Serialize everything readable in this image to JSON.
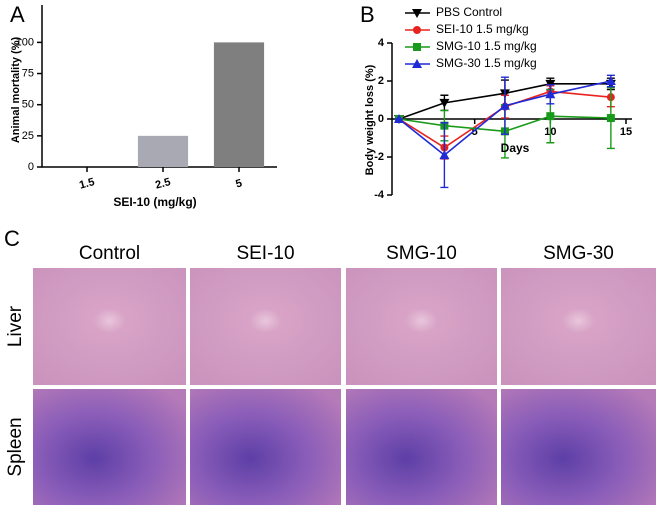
{
  "panel_labels": [
    "A",
    "B",
    "C"
  ],
  "chart_data": [
    {
      "type": "bar",
      "categories": [
        "1.5",
        "2.5",
        "5"
      ],
      "values": [
        0,
        25,
        100
      ],
      "colors": [
        "#a9a9b3",
        "#a9a9b3",
        "#7f7f7f"
      ],
      "ylim": [
        0,
        130
      ],
      "yticks": [
        0,
        25,
        50,
        75,
        100
      ],
      "ylabel": "Animal mortality (%)",
      "xlabel": "SEI-10 (mg/kg)"
    },
    {
      "type": "line",
      "x": [
        0,
        3,
        7,
        10,
        14
      ],
      "series": [
        {
          "name": "PBS Control",
          "color": "#000000",
          "marker": "triangle-down",
          "values": [
            0,
            0.85,
            1.35,
            1.85,
            1.85
          ],
          "errors": [
            0,
            0.4,
            0.7,
            0.3,
            0.3
          ]
        },
        {
          "name": "SEI-10 1.5 mg/kg",
          "color": "#e8231f",
          "marker": "circle",
          "values": [
            0,
            -1.5,
            0.65,
            1.45,
            1.15
          ],
          "errors": [
            0,
            0.6,
            0.6,
            0.3,
            0.5
          ]
        },
        {
          "name": "SMG-10 1.5 mg/kg",
          "color": "#1a9a1a",
          "marker": "square",
          "values": [
            0,
            -0.35,
            -0.65,
            0.15,
            0.05
          ],
          "errors": [
            0,
            0.8,
            1.4,
            1.4,
            1.6
          ]
        },
        {
          "name": "SMG-30 1.5 mg/kg",
          "color": "#1f2ad6",
          "marker": "triangle",
          "values": [
            0,
            -1.9,
            0.7,
            1.3,
            2.0
          ],
          "errors": [
            0,
            1.7,
            1.5,
            0.5,
            0.3
          ]
        }
      ],
      "xlim": [
        0,
        15
      ],
      "xticks": [
        5,
        10,
        15
      ],
      "ylim": [
        -4,
        4
      ],
      "yticks": [
        -4,
        -2,
        0,
        2,
        4
      ],
      "xlabel": "Days",
      "ylabel": "Body weight loss (%)"
    }
  ],
  "histology": {
    "columns": [
      "Control",
      "SEI-10",
      "SMG-10",
      "SMG-30"
    ],
    "rows": [
      "Liver",
      "Spleen"
    ]
  }
}
